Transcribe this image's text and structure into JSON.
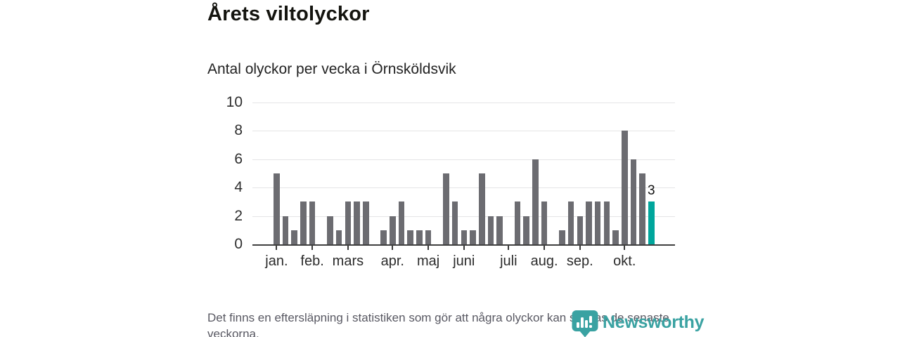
{
  "header": {
    "title": "Årets viltolyckor",
    "subtitle": "Antal olyckor per vecka i Örnsköldsvik"
  },
  "footer": {
    "note": "Det finns en eftersläpning i statistiken som gör att några olyckor kan saknas de senaste veckorna."
  },
  "branding": {
    "name": "Newsworthy",
    "logo_icon": "speech-bubble-bar-chart-pin",
    "color": "#3aa2a2"
  },
  "chart_data": {
    "type": "bar",
    "title": "Årets viltolyckor",
    "subtitle": "Antal olyckor per vecka i Örnsköldsvik",
    "xlabel": "",
    "ylabel": "Antal olyckor per vecka",
    "x_unit": "vecka",
    "values": [
      5,
      2,
      1,
      3,
      3,
      0,
      2,
      1,
      3,
      3,
      3,
      0,
      1,
      2,
      3,
      1,
      1,
      1,
      0,
      5,
      3,
      1,
      1,
      5,
      2,
      2,
      0,
      3,
      2,
      6,
      3,
      0,
      1,
      3,
      2,
      3,
      3,
      3,
      1,
      8,
      6,
      5,
      3
    ],
    "month_ticks": [
      {
        "label": "jan.",
        "week": 0
      },
      {
        "label": "feb.",
        "week": 4
      },
      {
        "label": "mars",
        "week": 8
      },
      {
        "label": "apr.",
        "week": 13
      },
      {
        "label": "maj",
        "week": 17
      },
      {
        "label": "juni",
        "week": 21
      },
      {
        "label": "juli",
        "week": 26
      },
      {
        "label": "aug.",
        "week": 30
      },
      {
        "label": "sep.",
        "week": 34
      },
      {
        "label": "okt.",
        "week": 39
      }
    ],
    "ylim": [
      0,
      10
    ],
    "yticks": [
      0,
      2,
      4,
      6,
      8,
      10
    ],
    "grid": "horizontal",
    "legend": "none",
    "bar_color": "#6c6c71",
    "highlight_color": "#00a69c",
    "highlight": {
      "index": 42,
      "label": "3"
    }
  }
}
